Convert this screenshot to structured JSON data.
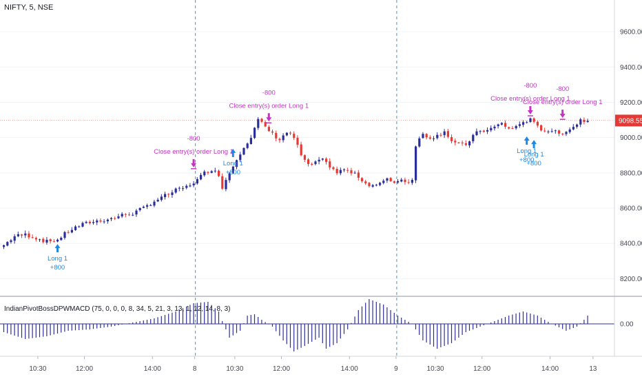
{
  "chart_data": [
    {
      "type": "candlestick",
      "title": "NIFTY, 5, NSE",
      "ylim": [
        8100,
        9780
      ],
      "y_ticks": [
        "9600.00",
        "9400.00",
        "9200.00",
        "9000.00",
        "8800.00",
        "8600.00",
        "8400.00",
        "8200.00"
      ],
      "y_tick_values": [
        9600,
        9400,
        9200,
        9000,
        8800,
        8600,
        8400,
        8200
      ],
      "last_price": "9098.55",
      "last_price_value": 9098.55,
      "x_ticks": [
        "10:30",
        "12:00",
        "14:00",
        "8",
        "10:30",
        "12:00",
        "14:00",
        "9",
        "10:30",
        "12:00",
        "14:00",
        "13"
      ],
      "session_breaks": [
        "8",
        "9"
      ],
      "up_color": "#2a2e99",
      "down_color": "#e53935",
      "price_path": [
        [
          0,
          8390
        ],
        [
          3,
          8440
        ],
        [
          6,
          8450
        ],
        [
          9,
          8430
        ],
        [
          12,
          8410
        ],
        [
          15,
          8420
        ],
        [
          18,
          8470
        ],
        [
          21,
          8500
        ],
        [
          24,
          8520
        ],
        [
          27,
          8530
        ],
        [
          30,
          8540
        ],
        [
          33,
          8560
        ],
        [
          36,
          8570
        ],
        [
          39,
          8600
        ],
        [
          42,
          8640
        ],
        [
          45,
          8670
        ],
        [
          48,
          8700
        ],
        [
          51,
          8720
        ],
        [
          54,
          8760
        ],
        [
          56,
          8800
        ],
        [
          58,
          8820
        ],
        [
          60,
          8790
        ],
        [
          61,
          8720
        ],
        [
          63,
          8800
        ],
        [
          65,
          8880
        ],
        [
          67,
          8950
        ],
        [
          69,
          9000
        ],
        [
          71,
          9100
        ],
        [
          73,
          9060
        ],
        [
          75,
          9020
        ],
        [
          77,
          8990
        ],
        [
          79,
          9030
        ],
        [
          81,
          9000
        ],
        [
          83,
          8900
        ],
        [
          85,
          8840
        ],
        [
          87,
          8860
        ],
        [
          89,
          8870
        ],
        [
          91,
          8840
        ],
        [
          93,
          8800
        ],
        [
          95,
          8820
        ],
        [
          97,
          8800
        ],
        [
          99,
          8780
        ],
        [
          101,
          8740
        ],
        [
          103,
          8730
        ],
        [
          105,
          8740
        ],
        [
          107,
          8760
        ],
        [
          109,
          8750
        ],
        [
          111,
          8760
        ],
        [
          113,
          8750
        ],
        [
          114,
          8760
        ],
        [
          115,
          8960
        ],
        [
          117,
          9020
        ],
        [
          119,
          9000
        ],
        [
          121,
          9010
        ],
        [
          123,
          9040
        ],
        [
          125,
          8980
        ],
        [
          127,
          8960
        ],
        [
          129,
          8960
        ],
        [
          131,
          9010
        ],
        [
          133,
          9040
        ],
        [
          135,
          9040
        ],
        [
          137,
          9060
        ],
        [
          139,
          9080
        ],
        [
          141,
          9050
        ],
        [
          143,
          9060
        ],
        [
          145,
          9090
        ],
        [
          147,
          9100
        ],
        [
          149,
          9060
        ],
        [
          151,
          9040
        ],
        [
          153,
          9040
        ],
        [
          155,
          9020
        ],
        [
          157,
          9040
        ],
        [
          159,
          9060
        ],
        [
          161,
          9100
        ],
        [
          163,
          9095
        ]
      ],
      "annotations": [
        {
          "kind": "long",
          "lines": [
            "Long 1",
            "+800"
          ],
          "bar": 15,
          "price": 8420
        },
        {
          "kind": "close",
          "lines": [
            "-800",
            "Close entry(s) order Long 1"
          ],
          "bar": 53,
          "price": 8800
        },
        {
          "kind": "long",
          "lines": [
            "Long 1",
            "+800"
          ],
          "bar": 64,
          "price": 8960
        },
        {
          "kind": "close",
          "lines": [
            "-800",
            "Close entry(s) order Long 1"
          ],
          "bar": 74,
          "price": 9060
        },
        {
          "kind": "long",
          "lines": [
            "Long 1",
            "+800"
          ],
          "bar": 146,
          "price": 9030
        },
        {
          "kind": "close",
          "lines": [
            "-800",
            "Close entry(s) order Long 1"
          ],
          "bar": 147,
          "price": 9100
        },
        {
          "kind": "long",
          "lines": [
            "Long 1",
            "+800"
          ],
          "bar": 148,
          "price": 9010
        },
        {
          "kind": "close",
          "lines": [
            "-800",
            "Close entry(s) order Long 1"
          ],
          "bar": 156,
          "price": 9080
        }
      ]
    },
    {
      "type": "histogram",
      "title": "IndianPivotBossDPWMACD (75, 0, 0, 0, 8, 34, 5, 21, 3, 13, 1, 12, 14, 8, 3)",
      "y_ticks": [
        "0.00"
      ],
      "ylim": [
        -1.2,
        1.2
      ],
      "color": "#2a2e99",
      "values_path": [
        [
          0,
          -0.3
        ],
        [
          6,
          -0.55
        ],
        [
          12,
          -0.45
        ],
        [
          18,
          -0.25
        ],
        [
          24,
          -0.2
        ],
        [
          30,
          -0.1
        ],
        [
          36,
          0.05
        ],
        [
          42,
          0.2
        ],
        [
          48,
          0.45
        ],
        [
          53,
          0.75
        ],
        [
          57,
          0.8
        ],
        [
          60,
          0.45
        ],
        [
          61,
          0.1
        ],
        [
          63,
          -0.5
        ],
        [
          66,
          -0.25
        ],
        [
          68,
          0.3
        ],
        [
          70,
          0.35
        ],
        [
          72,
          0.15
        ],
        [
          75,
          -0.1
        ],
        [
          78,
          -0.6
        ],
        [
          81,
          -1.0
        ],
        [
          84,
          -0.8
        ],
        [
          88,
          -0.5
        ],
        [
          90,
          -0.9
        ],
        [
          93,
          -0.7
        ],
        [
          96,
          -0.2
        ],
        [
          99,
          0.5
        ],
        [
          102,
          0.9
        ],
        [
          106,
          0.7
        ],
        [
          110,
          0.3
        ],
        [
          114,
          0.0
        ],
        [
          117,
          -0.6
        ],
        [
          121,
          -0.9
        ],
        [
          125,
          -0.7
        ],
        [
          129,
          -0.3
        ],
        [
          133,
          -0.1
        ],
        [
          137,
          0.1
        ],
        [
          141,
          0.3
        ],
        [
          145,
          0.45
        ],
        [
          149,
          0.3
        ],
        [
          153,
          0.0
        ],
        [
          157,
          -0.25
        ],
        [
          160,
          -0.1
        ],
        [
          162,
          0.15
        ],
        [
          163,
          0.3
        ]
      ]
    }
  ]
}
